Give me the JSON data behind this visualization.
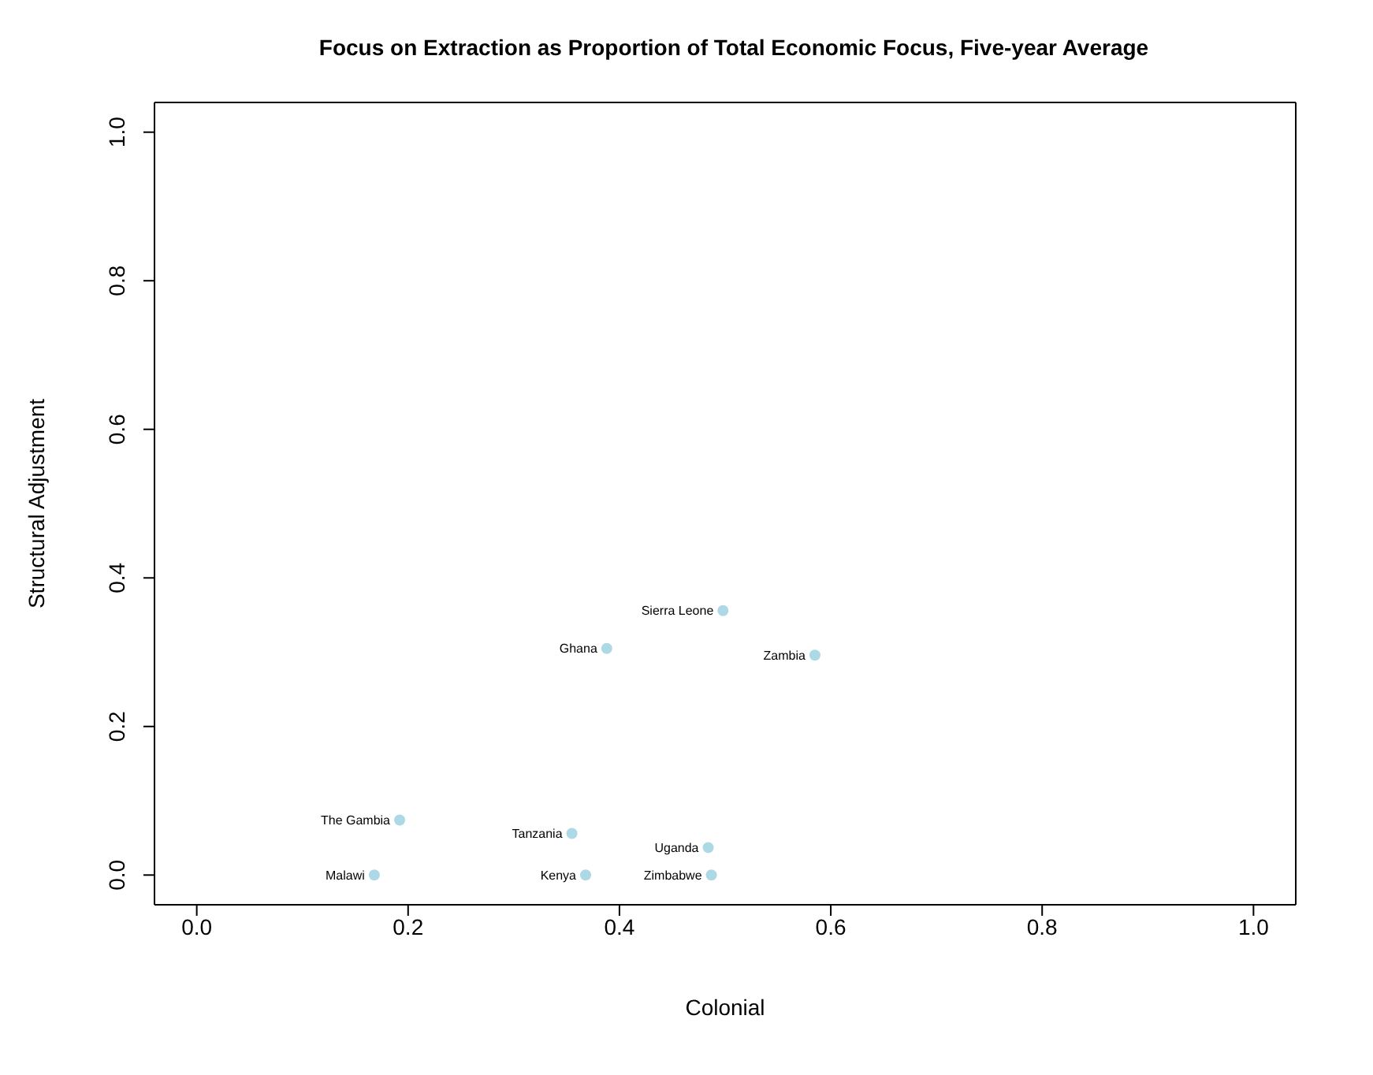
{
  "chart_data": {
    "type": "scatter",
    "title": "Focus on Extraction as Proportion of Total Economic Focus, Five-year Average",
    "xlabel": "Colonial",
    "ylabel": "Structural Adjustment",
    "x": [
      0.498,
      0.388,
      0.585,
      0.192,
      0.355,
      0.484,
      0.168,
      0.368,
      0.487
    ],
    "values": [
      0.356,
      0.305,
      0.296,
      0.074,
      0.056,
      0.037,
      0,
      0,
      0
    ],
    "color": "#add8e6",
    "marker": "circle",
    "grid": false,
    "legend": false,
    "xlim": [
      -0.04,
      1.04
    ],
    "ylim": [
      -0.04,
      1.04
    ],
    "xticks": [
      {
        "value": 0,
        "label": "0.0"
      },
      {
        "value": 0.2,
        "label": "0.2"
      },
      {
        "value": 0.4,
        "label": "0.4"
      },
      {
        "value": 0.6,
        "label": "0.6"
      },
      {
        "value": 0.8,
        "label": "0.8"
      },
      {
        "value": 1,
        "label": "1.0"
      }
    ],
    "yticks": [
      {
        "value": 0,
        "label": "0.0"
      },
      {
        "value": 0.2,
        "label": "0.2"
      },
      {
        "value": 0.4,
        "label": "0.4"
      },
      {
        "value": 0.6,
        "label": "0.6"
      },
      {
        "value": 0.8,
        "label": "0.8"
      },
      {
        "value": 1,
        "label": "1.0"
      }
    ],
    "annotations": [
      {
        "text": "Sierra Leone",
        "x": 0.498,
        "y": 0.356
      },
      {
        "text": "Ghana",
        "x": 0.388,
        "y": 0.305
      },
      {
        "text": "Zambia",
        "x": 0.585,
        "y": 0.296
      },
      {
        "text": "The Gambia",
        "x": 0.192,
        "y": 0.074
      },
      {
        "text": "Tanzania",
        "x": 0.355,
        "y": 0.056
      },
      {
        "text": "Uganda",
        "x": 0.484,
        "y": 0.037
      },
      {
        "text": "Malawi",
        "x": 0.168,
        "y": 0
      },
      {
        "text": "Kenya",
        "x": 0.368,
        "y": 0
      },
      {
        "text": "Zimbabwe",
        "x": 0.487,
        "y": 0
      }
    ]
  }
}
